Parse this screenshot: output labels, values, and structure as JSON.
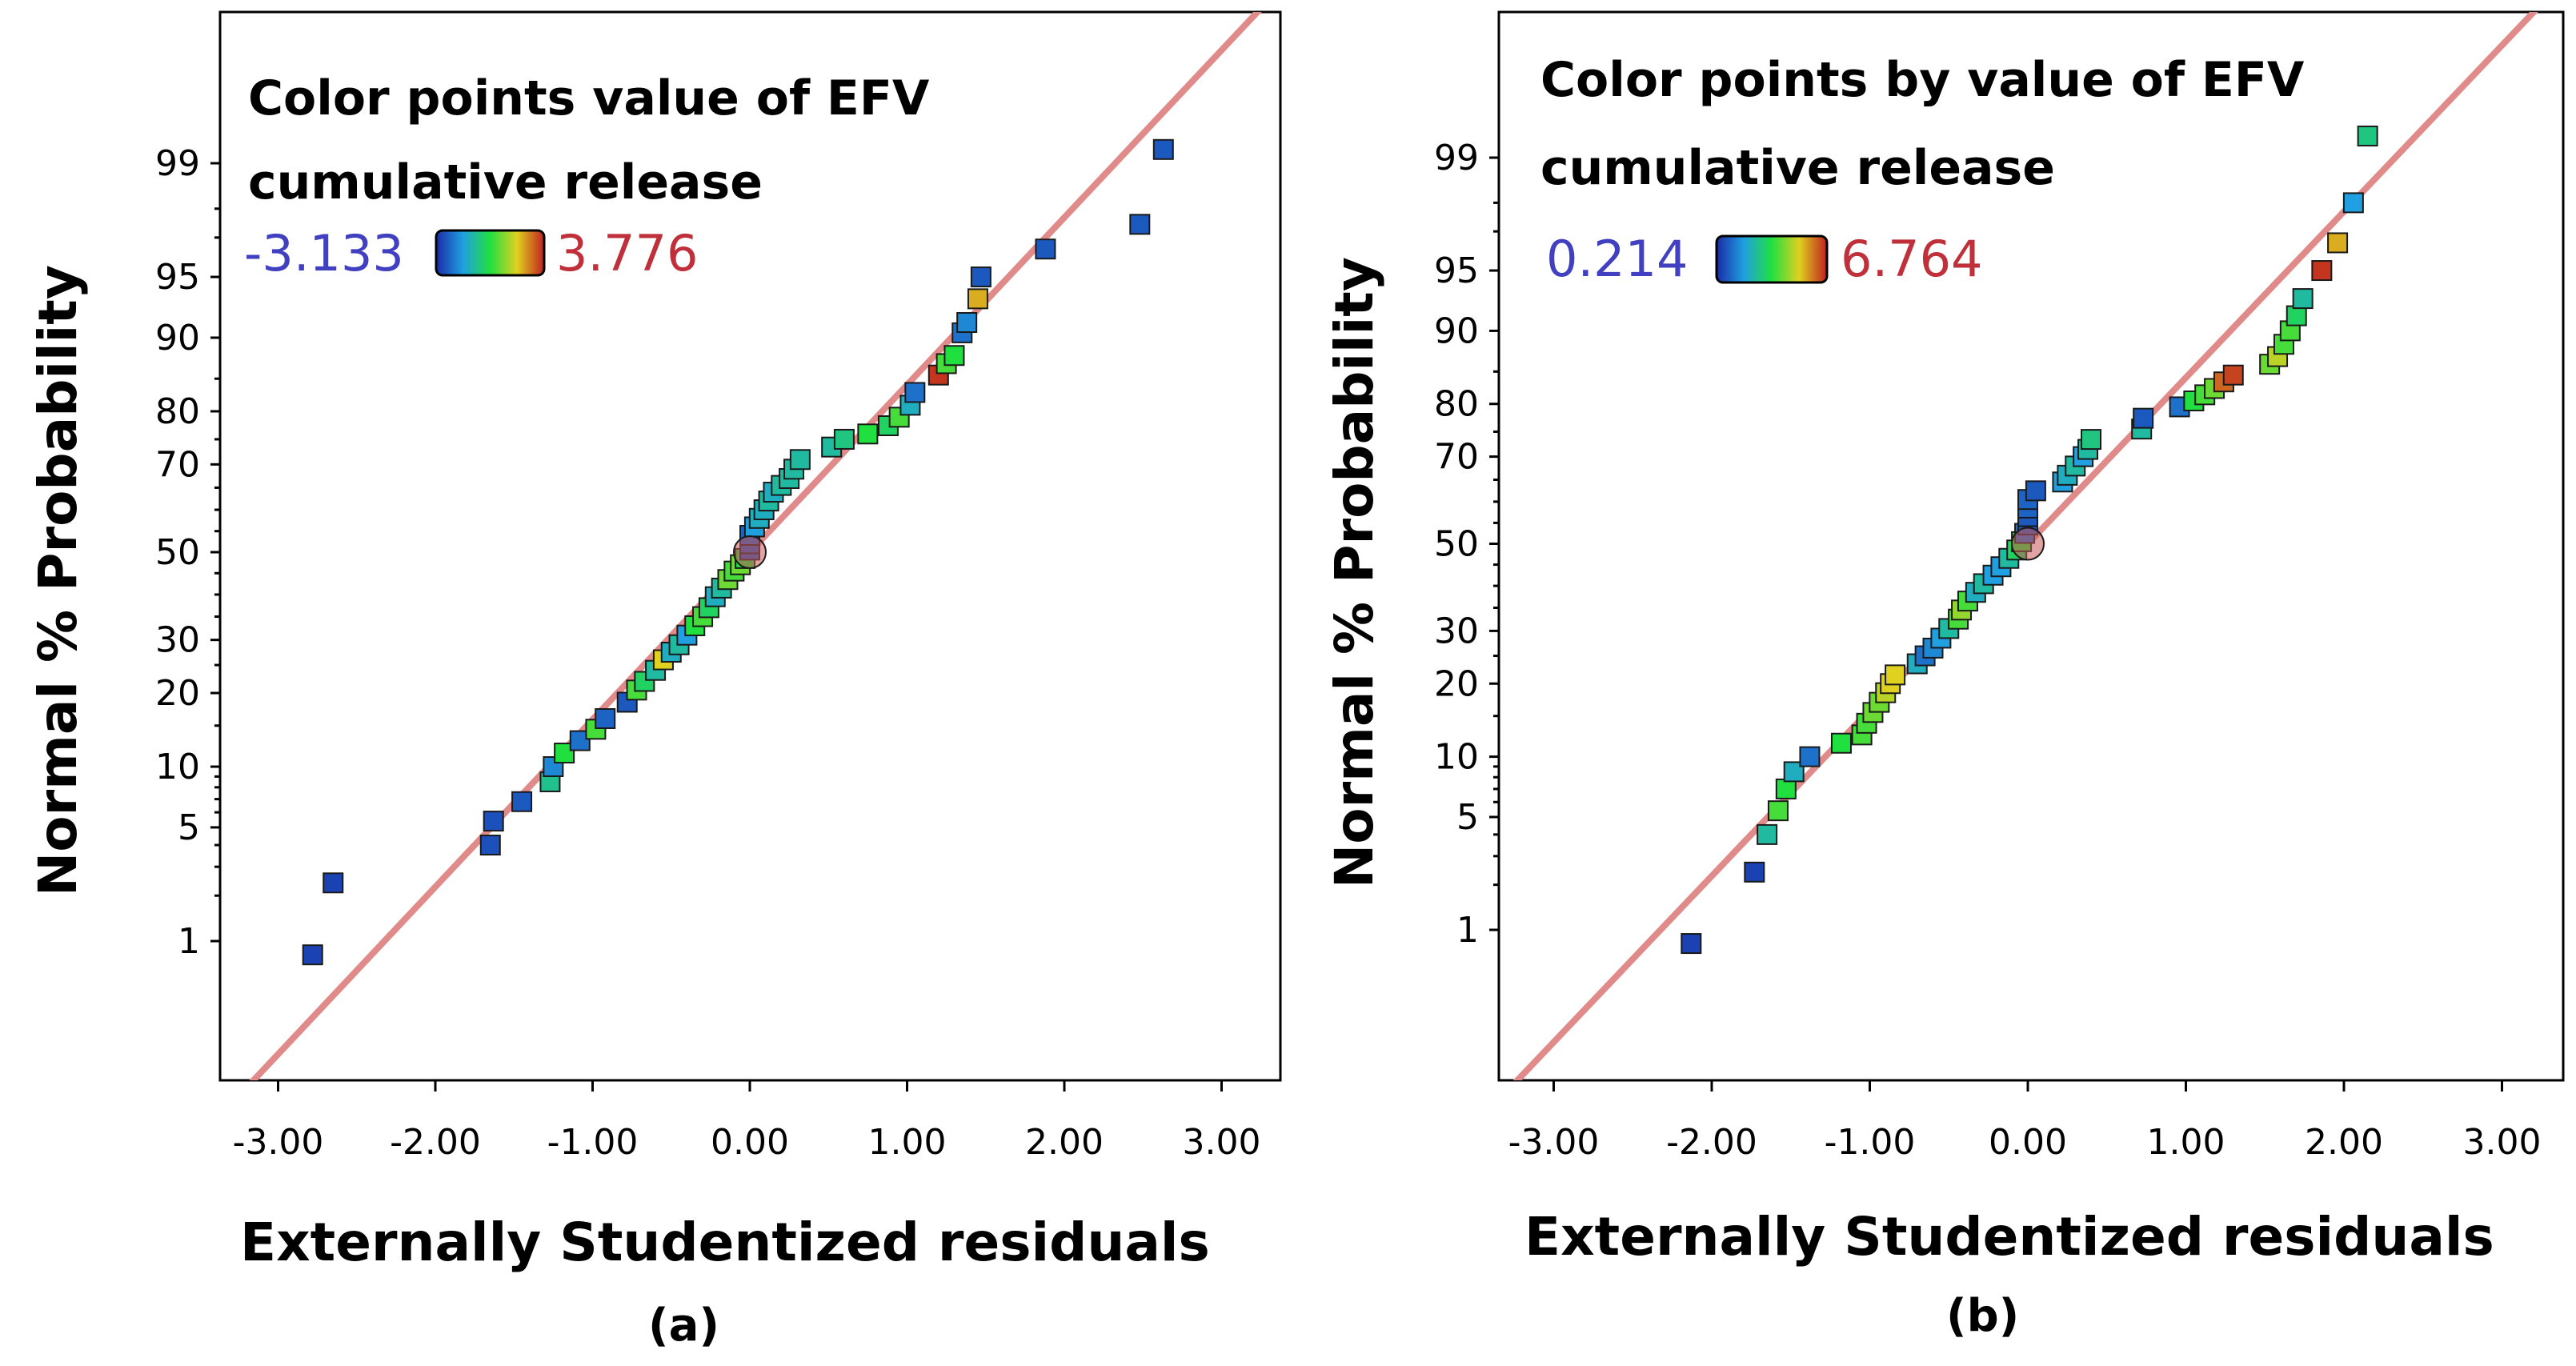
{
  "chart_data": [
    {
      "type": "scatter",
      "panel_label": "(a)",
      "xlabel": "Externally Studentized residuals",
      "ylabel": "Normal % Probability",
      "xlim": [
        -3.3,
        3.0
      ],
      "x_ticks": [
        "-3.00",
        "-2.00",
        "-1.00",
        "0.00",
        "1.00",
        "2.00",
        "3.00"
      ],
      "x_tick_values": [
        -3,
        -2,
        -1,
        0,
        1,
        2,
        3
      ],
      "y_scale": "normal-probability",
      "y_ticks": [
        "1",
        "5",
        "10",
        "20",
        "30",
        "50",
        "70",
        "80",
        "90",
        "95",
        "99"
      ],
      "y_tick_values": [
        1,
        5,
        10,
        20,
        30,
        50,
        70,
        80,
        90,
        95,
        99
      ],
      "legend": {
        "title_line1": "Color points value of EFV",
        "title_line2": "cumulative release",
        "min_label": "-3.133",
        "max_label": "3.776",
        "min_color": "#4040c0",
        "max_color": "#c0303a"
      },
      "reference_line_color": "#e08a8a",
      "points": [
        {
          "x": -2.78,
          "y": 0.8,
          "c": 0.05
        },
        {
          "x": -2.65,
          "y": 2.4,
          "c": 0.05
        },
        {
          "x": -1.65,
          "y": 4.0,
          "c": 0.08
        },
        {
          "x": -1.63,
          "y": 5.4,
          "c": 0.08
        },
        {
          "x": -1.45,
          "y": 6.8,
          "c": 0.1
        },
        {
          "x": -1.27,
          "y": 8.5,
          "c": 0.38
        },
        {
          "x": -1.25,
          "y": 10.0,
          "c": 0.2
        },
        {
          "x": -1.18,
          "y": 11.5,
          "c": 0.5
        },
        {
          "x": -1.08,
          "y": 13.0,
          "c": 0.15
        },
        {
          "x": -0.98,
          "y": 14.5,
          "c": 0.55
        },
        {
          "x": -0.92,
          "y": 16.0,
          "c": 0.12
        },
        {
          "x": -0.78,
          "y": 18.5,
          "c": 0.1
        },
        {
          "x": -0.72,
          "y": 20.5,
          "c": 0.55
        },
        {
          "x": -0.67,
          "y": 22.0,
          "c": 0.45
        },
        {
          "x": -0.6,
          "y": 24.0,
          "c": 0.35
        },
        {
          "x": -0.55,
          "y": 26.0,
          "c": 0.75
        },
        {
          "x": -0.5,
          "y": 27.5,
          "c": 0.3
        },
        {
          "x": -0.45,
          "y": 29.0,
          "c": 0.35
        },
        {
          "x": -0.4,
          "y": 31.0,
          "c": 0.25
        },
        {
          "x": -0.35,
          "y": 33.0,
          "c": 0.5
        },
        {
          "x": -0.3,
          "y": 35.0,
          "c": 0.55
        },
        {
          "x": -0.26,
          "y": 37.0,
          "c": 0.45
        },
        {
          "x": -0.22,
          "y": 39.5,
          "c": 0.3
        },
        {
          "x": -0.18,
          "y": 41.5,
          "c": 0.35
        },
        {
          "x": -0.14,
          "y": 43.5,
          "c": 0.6
        },
        {
          "x": -0.1,
          "y": 45.5,
          "c": 0.55
        },
        {
          "x": -0.06,
          "y": 47.0,
          "c": 0.6
        },
        {
          "x": -0.03,
          "y": 48.5,
          "c": 0.5
        },
        {
          "x": 0.0,
          "y": 50.5,
          "c": 0.1
        },
        {
          "x": 0.0,
          "y": 52.0,
          "c": 0.1
        },
        {
          "x": 0.0,
          "y": 54.0,
          "c": 0.12
        },
        {
          "x": 0.03,
          "y": 56.0,
          "c": 0.25
        },
        {
          "x": 0.06,
          "y": 58.0,
          "c": 0.3
        },
        {
          "x": 0.09,
          "y": 60.0,
          "c": 0.3
        },
        {
          "x": 0.12,
          "y": 62.0,
          "c": 0.35
        },
        {
          "x": 0.15,
          "y": 64.0,
          "c": 0.3
        },
        {
          "x": 0.2,
          "y": 65.5,
          "c": 0.35
        },
        {
          "x": 0.25,
          "y": 67.0,
          "c": 0.35
        },
        {
          "x": 0.28,
          "y": 69.0,
          "c": 0.35
        },
        {
          "x": 0.32,
          "y": 71.0,
          "c": 0.35
        },
        {
          "x": 0.52,
          "y": 73.5,
          "c": 0.35
        },
        {
          "x": 0.6,
          "y": 75.0,
          "c": 0.4
        },
        {
          "x": 0.75,
          "y": 76.0,
          "c": 0.5
        },
        {
          "x": 0.88,
          "y": 77.5,
          "c": 0.45
        },
        {
          "x": 0.95,
          "y": 79.0,
          "c": 0.55
        },
        {
          "x": 1.02,
          "y": 81.0,
          "c": 0.3
        },
        {
          "x": 1.05,
          "y": 83.0,
          "c": 0.15
        },
        {
          "x": 1.2,
          "y": 85.5,
          "c": 0.97
        },
        {
          "x": 1.25,
          "y": 87.0,
          "c": 0.55
        },
        {
          "x": 1.3,
          "y": 88.0,
          "c": 0.5
        },
        {
          "x": 1.35,
          "y": 90.5,
          "c": 0.15
        },
        {
          "x": 1.38,
          "y": 91.5,
          "c": 0.2
        },
        {
          "x": 1.45,
          "y": 93.5,
          "c": 0.8
        },
        {
          "x": 1.47,
          "y": 95.0,
          "c": 0.1
        },
        {
          "x": 1.88,
          "y": 96.5,
          "c": 0.1
        },
        {
          "x": 2.48,
          "y": 97.5,
          "c": 0.1
        },
        {
          "x": 2.63,
          "y": 99.2,
          "c": 0.1
        }
      ],
      "center_marker": {
        "x": 0.0,
        "y": 50.0
      }
    },
    {
      "type": "scatter",
      "panel_label": "(b)",
      "xlabel": "Externally Studentized residuals",
      "ylabel": "Normal % Probability",
      "xlim": [
        -3.3,
        3.0
      ],
      "x_ticks": [
        "-3.00",
        "-2.00",
        "-1.00",
        "0.00",
        "1.00",
        "2.00",
        "3.00"
      ],
      "x_tick_values": [
        -3,
        -2,
        -1,
        0,
        1,
        2,
        3
      ],
      "y_scale": "normal-probability",
      "y_ticks": [
        "1",
        "5",
        "10",
        "20",
        "30",
        "50",
        "70",
        "80",
        "90",
        "95",
        "99"
      ],
      "y_tick_values": [
        1,
        5,
        10,
        20,
        30,
        50,
        70,
        80,
        90,
        95,
        99
      ],
      "legend": {
        "title_line1": "Color points by value of EFV",
        "title_line2": "cumulative release",
        "min_label": "0.214",
        "max_label": "6.764",
        "min_color": "#4040c0",
        "max_color": "#c0303a"
      },
      "reference_line_color": "#e08a8a",
      "points": [
        {
          "x": -2.13,
          "y": 0.8,
          "c": 0.05
        },
        {
          "x": -1.73,
          "y": 2.4,
          "c": 0.05
        },
        {
          "x": -1.65,
          "y": 4.0,
          "c": 0.35
        },
        {
          "x": -1.58,
          "y": 5.4,
          "c": 0.55
        },
        {
          "x": -1.53,
          "y": 7.0,
          "c": 0.5
        },
        {
          "x": -1.48,
          "y": 8.5,
          "c": 0.3
        },
        {
          "x": -1.38,
          "y": 10.0,
          "c": 0.15
        },
        {
          "x": -1.18,
          "y": 11.5,
          "c": 0.5
        },
        {
          "x": -1.05,
          "y": 12.5,
          "c": 0.55
        },
        {
          "x": -1.02,
          "y": 14.0,
          "c": 0.55
        },
        {
          "x": -0.98,
          "y": 15.5,
          "c": 0.6
        },
        {
          "x": -0.94,
          "y": 17.0,
          "c": 0.6
        },
        {
          "x": -0.9,
          "y": 18.5,
          "c": 0.7
        },
        {
          "x": -0.87,
          "y": 20.0,
          "c": 0.75
        },
        {
          "x": -0.84,
          "y": 21.5,
          "c": 0.75
        },
        {
          "x": -0.7,
          "y": 23.5,
          "c": 0.3
        },
        {
          "x": -0.65,
          "y": 25.0,
          "c": 0.15
        },
        {
          "x": -0.6,
          "y": 26.5,
          "c": 0.2
        },
        {
          "x": -0.55,
          "y": 28.5,
          "c": 0.25
        },
        {
          "x": -0.5,
          "y": 30.5,
          "c": 0.35
        },
        {
          "x": -0.44,
          "y": 32.5,
          "c": 0.55
        },
        {
          "x": -0.42,
          "y": 34.5,
          "c": 0.65
        },
        {
          "x": -0.38,
          "y": 36.5,
          "c": 0.55
        },
        {
          "x": -0.33,
          "y": 38.5,
          "c": 0.3
        },
        {
          "x": -0.28,
          "y": 40.5,
          "c": 0.35
        },
        {
          "x": -0.22,
          "y": 42.5,
          "c": 0.25
        },
        {
          "x": -0.17,
          "y": 44.5,
          "c": 0.25
        },
        {
          "x": -0.12,
          "y": 46.5,
          "c": 0.35
        },
        {
          "x": -0.07,
          "y": 48.5,
          "c": 0.45
        },
        {
          "x": -0.04,
          "y": 50.5,
          "c": 0.5
        },
        {
          "x": -0.02,
          "y": 52.5,
          "c": 0.15
        },
        {
          "x": 0.0,
          "y": 54.5,
          "c": 0.1
        },
        {
          "x": 0.0,
          "y": 56.5,
          "c": 0.1
        },
        {
          "x": 0.0,
          "y": 58.5,
          "c": 0.12
        },
        {
          "x": 0.0,
          "y": 60.5,
          "c": 0.12
        },
        {
          "x": 0.05,
          "y": 62.5,
          "c": 0.1
        },
        {
          "x": 0.22,
          "y": 64.5,
          "c": 0.25
        },
        {
          "x": 0.25,
          "y": 66.0,
          "c": 0.3
        },
        {
          "x": 0.3,
          "y": 68.0,
          "c": 0.35
        },
        {
          "x": 0.35,
          "y": 70.0,
          "c": 0.25
        },
        {
          "x": 0.38,
          "y": 71.5,
          "c": 0.35
        },
        {
          "x": 0.4,
          "y": 73.5,
          "c": 0.4
        },
        {
          "x": 0.72,
          "y": 75.5,
          "c": 0.35
        },
        {
          "x": 0.73,
          "y": 77.5,
          "c": 0.1
        },
        {
          "x": 0.96,
          "y": 79.5,
          "c": 0.15
        },
        {
          "x": 1.05,
          "y": 80.5,
          "c": 0.5
        },
        {
          "x": 1.12,
          "y": 81.5,
          "c": 0.55
        },
        {
          "x": 1.18,
          "y": 82.5,
          "c": 0.6
        },
        {
          "x": 1.24,
          "y": 83.5,
          "c": 0.9
        },
        {
          "x": 1.3,
          "y": 84.5,
          "c": 0.95
        },
        {
          "x": 1.53,
          "y": 86.0,
          "c": 0.6
        },
        {
          "x": 1.58,
          "y": 87.0,
          "c": 0.7
        },
        {
          "x": 1.62,
          "y": 88.5,
          "c": 0.55
        },
        {
          "x": 1.66,
          "y": 90.0,
          "c": 0.55
        },
        {
          "x": 1.7,
          "y": 91.5,
          "c": 0.45
        },
        {
          "x": 1.74,
          "y": 93.0,
          "c": 0.35
        },
        {
          "x": 1.86,
          "y": 95.0,
          "c": 0.97
        },
        {
          "x": 1.96,
          "y": 96.5,
          "c": 0.8
        },
        {
          "x": 2.06,
          "y": 98.0,
          "c": 0.25
        },
        {
          "x": 2.15,
          "y": 99.3,
          "c": 0.4
        }
      ],
      "center_marker": {
        "x": 0.0,
        "y": 50.0
      }
    }
  ]
}
